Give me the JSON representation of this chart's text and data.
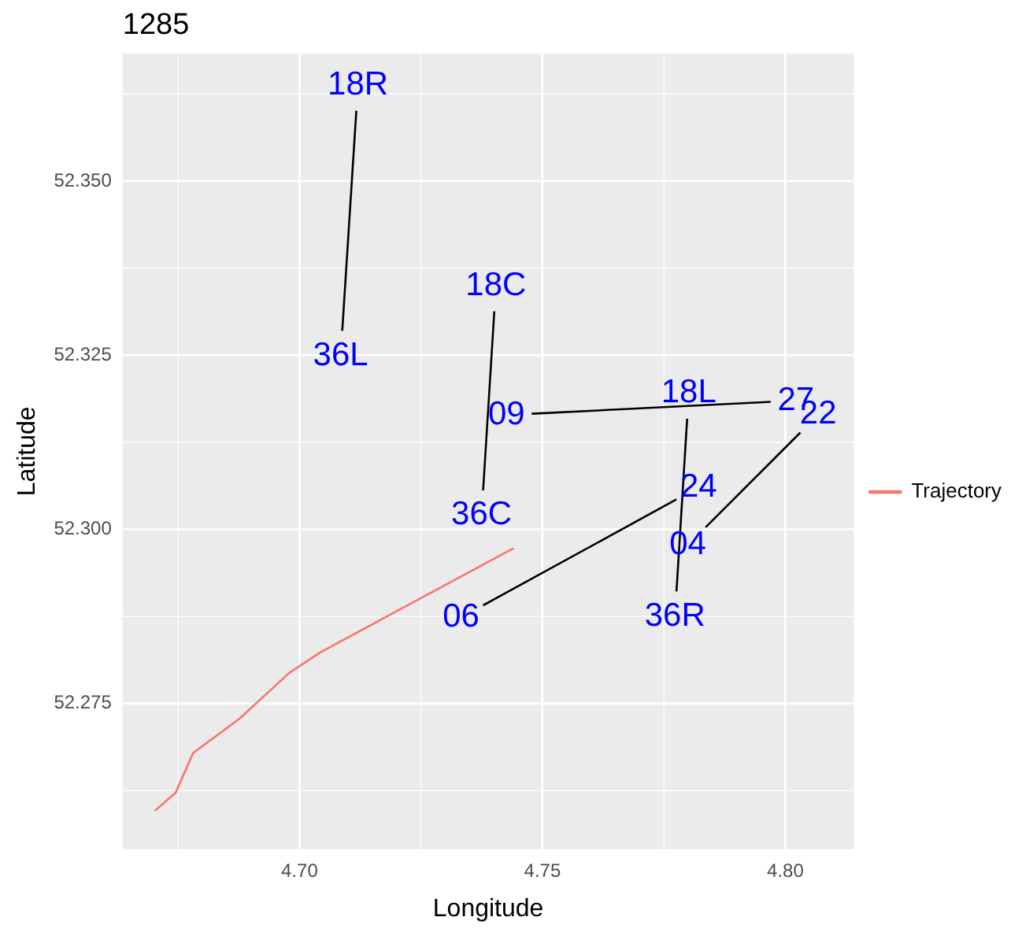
{
  "chart_data": {
    "type": "line",
    "title": "1285",
    "xlabel": "Longitude",
    "ylabel": "Latitude",
    "xlim": [
      4.6636,
      4.8141
    ],
    "ylim": [
      52.2541,
      52.3683
    ],
    "xticks": [
      {
        "value": 4.7,
        "label": "4.70"
      },
      {
        "value": 4.75,
        "label": "4.75"
      },
      {
        "value": 4.8,
        "label": "4.80"
      }
    ],
    "yticks": [
      {
        "value": 52.275,
        "label": "52.275"
      },
      {
        "value": 52.3,
        "label": "52.300"
      },
      {
        "value": 52.325,
        "label": "52.325"
      },
      {
        "value": 52.35,
        "label": "52.350"
      }
    ],
    "grid": true,
    "legend": "right",
    "marker": "none",
    "series": [
      {
        "name": "Trajectory",
        "color": "#f8766d",
        "x": [
          4.6702,
          4.6745,
          4.6781,
          4.6876,
          4.6979,
          4.7042,
          4.7209,
          4.7441
        ],
        "values": [
          52.2596,
          52.2622,
          52.2679,
          52.2728,
          52.2794,
          52.2823,
          52.2886,
          52.2973
        ]
      },
      {
        "color": "#000000",
        "x": [
          4.7117,
          4.7088
        ],
        "values": [
          52.3601,
          52.3285
        ]
      },
      {
        "color": "#000000",
        "x": [
          4.7401,
          4.7378
        ],
        "values": [
          52.3313,
          52.3056
        ]
      },
      {
        "color": "#000000",
        "x": [
          4.7478,
          4.797
        ],
        "values": [
          52.3166,
          52.3183
        ]
      },
      {
        "color": "#000000",
        "x": [
          4.7798,
          4.7776
        ],
        "values": [
          52.3159,
          52.2911
        ]
      },
      {
        "color": "#000000",
        "x": [
          4.7378,
          4.7776
        ],
        "values": [
          52.2891,
          52.3043
        ]
      },
      {
        "color": "#000000",
        "x": [
          4.7836,
          4.8031
        ],
        "values": [
          52.3003,
          52.3139
        ]
      }
    ],
    "annotations": [
      {
        "text": "18R",
        "x": 4.7117,
        "y": 52.3601
      },
      {
        "text": "36L",
        "x": 4.7088,
        "y": 52.3285
      },
      {
        "text": "18C",
        "x": 4.7401,
        "y": 52.3313
      },
      {
        "text": "36C",
        "x": 4.7378,
        "y": 52.3056
      },
      {
        "text": "09",
        "x": 4.7478,
        "y": 52.3166
      },
      {
        "text": "27",
        "x": 4.797,
        "y": 52.3183
      },
      {
        "text": "18L",
        "x": 4.7798,
        "y": 52.3159
      },
      {
        "text": "36R",
        "x": 4.7776,
        "y": 52.2911
      },
      {
        "text": "06",
        "x": 4.7378,
        "y": 52.2891
      },
      {
        "text": "24",
        "x": 4.7776,
        "y": 52.3043
      },
      {
        "text": "04",
        "x": 4.7836,
        "y": 52.3003
      },
      {
        "text": "22",
        "x": 4.8031,
        "y": 52.3139
      }
    ]
  }
}
